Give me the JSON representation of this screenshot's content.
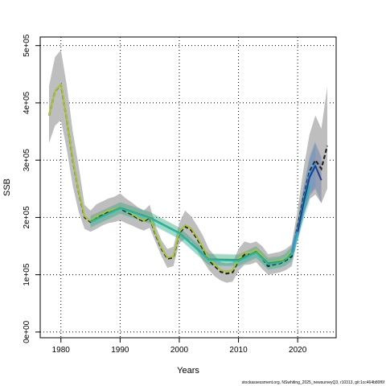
{
  "chart_data": {
    "type": "line",
    "xlabel": "Years",
    "ylabel": "SSB",
    "xlim": [
      1976.5,
      2026.5
    ],
    "ylim": [
      -10000,
      515000
    ],
    "x_ticks": [
      1980,
      1990,
      2000,
      2010,
      2020
    ],
    "y_ticks": [
      0,
      100000,
      200000,
      300000,
      400000,
      500000
    ],
    "y_tick_labels": [
      "0e+00",
      "1e+05",
      "2e+05",
      "3e+05",
      "4e+05",
      "5e+05"
    ],
    "grid": true,
    "footer": "stockassessment.org, NSwhiting_2025_newsurveyQ3, r10313, git:1cc464b80f6f",
    "colors": {
      "ci_band": "#bebebe",
      "retro_1": "#1f3f8c",
      "retro_2": "#3c8fd6",
      "retro_3": "#26b5b0",
      "retro_4": "#2e9e58",
      "retro_5": "#a6c43a",
      "base": "#222222",
      "frame": "#000000"
    },
    "base_series": {
      "name": "",
      "x": [
        1978,
        1979,
        1980,
        1981,
        1982,
        1983,
        1984,
        1985,
        1986,
        1987,
        1988,
        1989,
        1990,
        1991,
        1992,
        1993,
        1994,
        1995,
        1996,
        1997,
        1998,
        1999,
        2000,
        2001,
        2002,
        2003,
        2004,
        2005,
        2006,
        2007,
        2008,
        2009,
        2010,
        2011,
        2012,
        2013,
        2014,
        2015,
        2016,
        2017,
        2018,
        2019,
        2020,
        2021,
        2022,
        2023,
        2024,
        2025
      ],
      "y": [
        378000,
        420000,
        432000,
        370000,
        300000,
        245000,
        200000,
        192000,
        200000,
        205000,
        210000,
        212000,
        216000,
        210000,
        205000,
        198000,
        193000,
        200000,
        170000,
        145000,
        128000,
        130000,
        173000,
        184000,
        178000,
        163000,
        145000,
        125000,
        115000,
        105000,
        102000,
        104000,
        125000,
        135000,
        135000,
        140000,
        129000,
        115000,
        118000,
        120000,
        125000,
        132000,
        185000,
        235000,
        280000,
        300000,
        285000,
        325000
      ],
      "lower": [
        330000,
        360000,
        370000,
        318000,
        255000,
        210000,
        180000,
        175000,
        180000,
        186000,
        190000,
        192000,
        195000,
        190000,
        186000,
        181000,
        177000,
        182000,
        157000,
        132000,
        112000,
        115000,
        155000,
        163000,
        158000,
        143000,
        124000,
        108000,
        97000,
        90000,
        86000,
        88000,
        107000,
        117000,
        118000,
        122000,
        110000,
        100000,
        102000,
        104000,
        108000,
        115000,
        163000,
        205000,
        232000,
        240000,
        225000,
        250000
      ],
      "upper": [
        430000,
        480000,
        492000,
        430000,
        350000,
        290000,
        222000,
        212000,
        223000,
        228000,
        233000,
        236000,
        242000,
        233000,
        226000,
        218000,
        212000,
        222000,
        185000,
        160000,
        145000,
        149000,
        190000,
        212000,
        202000,
        186000,
        168000,
        145000,
        133000,
        122000,
        120000,
        121000,
        145000,
        158000,
        155000,
        158000,
        150000,
        136000,
        138000,
        140000,
        145000,
        153000,
        215000,
        285000,
        345000,
        378000,
        355000,
        428000
      ]
    },
    "retro_series": [
      {
        "name": "",
        "color_key": "retro_1",
        "x": [
          2020,
          2021,
          2022,
          2023,
          2024
        ],
        "y": [
          175000,
          225000,
          270000,
          290000,
          265000
        ],
        "lower": [
          160000,
          200000,
          238000,
          250000,
          225000
        ],
        "upper": [
          190000,
          250000,
          302000,
          330000,
          305000
        ]
      },
      {
        "name": "",
        "color_key": "retro_2",
        "x": [
          2019,
          2020,
          2021,
          2022,
          2023
        ],
        "y": [
          140000,
          180000,
          230000,
          275000,
          295000
        ],
        "lower": [
          125000,
          163000,
          205000,
          242000,
          255000
        ],
        "upper": [
          155000,
          197000,
          255000,
          308000,
          335000
        ]
      },
      {
        "name": "",
        "color_key": "retro_3",
        "x": [
          1985,
          1990,
          1995,
          2000,
          2005,
          2010,
          2013,
          2015,
          2017,
          2019,
          2020,
          2021,
          2022
        ],
        "y": [
          192000,
          216000,
          199000,
          172000,
          126000,
          124000,
          139000,
          118000,
          121000,
          135000,
          175000,
          220000,
          255000
        ],
        "lower": [
          182000,
          206000,
          189000,
          162000,
          116000,
          114000,
          129000,
          108000,
          111000,
          122000,
          158000,
          195000,
          225000
        ],
        "upper": [
          202000,
          226000,
          209000,
          182000,
          136000,
          134000,
          149000,
          128000,
          131000,
          148000,
          192000,
          245000,
          285000
        ]
      },
      {
        "name": "",
        "color_key": "retro_4",
        "x": [
          1985,
          1990,
          1995,
          2000,
          2005,
          2010,
          2013,
          2015,
          2017,
          2018,
          2019,
          2020,
          2021
        ],
        "y": [
          193000,
          217000,
          200000,
          173000,
          127000,
          126000,
          140000,
          120000,
          123000,
          126000,
          138000,
          178000,
          228000
        ],
        "lower": [
          183000,
          207000,
          190000,
          163000,
          117000,
          116000,
          130000,
          110000,
          113000,
          116000,
          126000,
          162000,
          205000
        ],
        "upper": [
          203000,
          227000,
          210000,
          183000,
          137000,
          136000,
          150000,
          130000,
          133000,
          136000,
          150000,
          194000,
          251000
        ]
      },
      {
        "name": "",
        "color_key": "retro_5",
        "x": [
          1978,
          1979,
          1980,
          1981,
          1982,
          1983,
          1984,
          1985,
          1986,
          1987,
          1988,
          1989,
          1990,
          1991,
          1992,
          1993,
          1994,
          1995,
          1996,
          1997,
          1998,
          1999,
          2000,
          2001,
          2002,
          2003,
          2004,
          2005,
          2006,
          2007,
          2008,
          2009,
          2010,
          2011,
          2012,
          2013,
          2014,
          2015,
          2016,
          2017,
          2018,
          2019,
          2020
        ],
        "y": [
          378000,
          420000,
          433000,
          370000,
          301000,
          246000,
          202000,
          194000,
          202000,
          207000,
          212000,
          214000,
          218000,
          212000,
          207000,
          200000,
          195000,
          202000,
          172000,
          147000,
          130000,
          132000,
          175000,
          187000,
          181000,
          166000,
          148000,
          128000,
          118000,
          108000,
          106000,
          108000,
          128000,
          139000,
          139000,
          144000,
          133000,
          120000,
          123000,
          125000,
          130000,
          140000,
          178000
        ]
      }
    ]
  }
}
